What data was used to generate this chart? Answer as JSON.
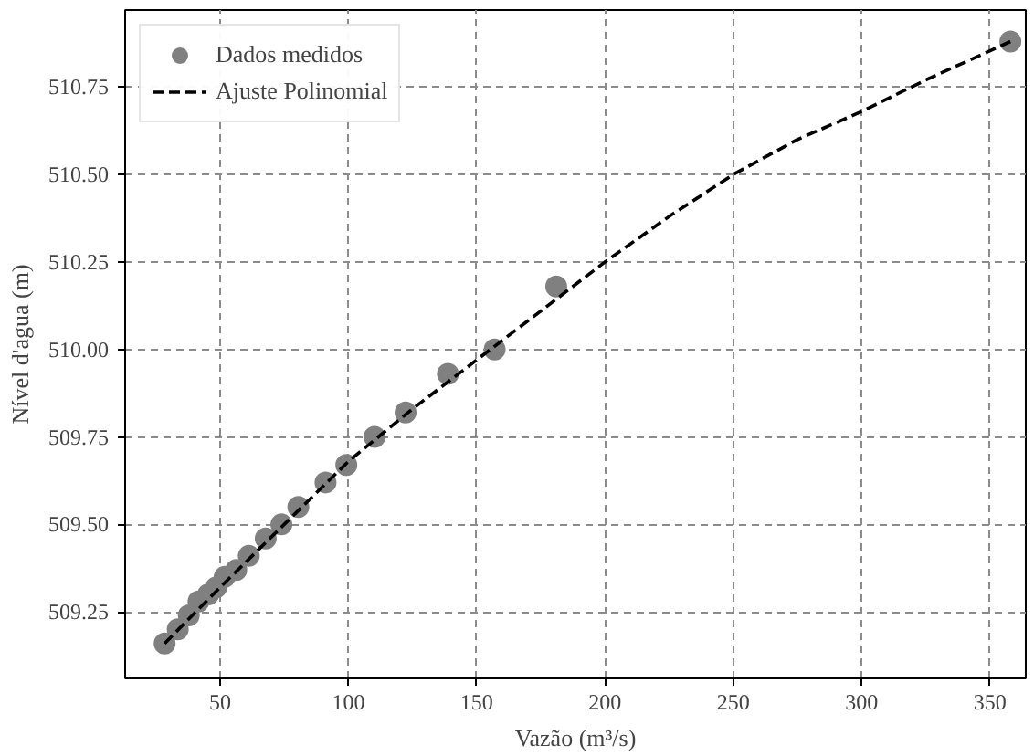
{
  "chart_data": {
    "type": "scatter",
    "xlabel": "Vazão (m³/s)",
    "ylabel": "Nível d'agua (m)",
    "xlim": [
      13,
      364
    ],
    "ylim": [
      509.06,
      510.97
    ],
    "xticks": [
      50,
      100,
      150,
      200,
      250,
      300,
      350
    ],
    "yticks": [
      {
        "value": 509.25,
        "label": "509.25"
      },
      {
        "value": 509.5,
        "label": "509.50"
      },
      {
        "value": 509.75,
        "label": "509.75"
      },
      {
        "value": 510.0,
        "label": "510.00"
      },
      {
        "value": 510.25,
        "label": "510.25"
      },
      {
        "value": 510.5,
        "label": "510.50"
      },
      {
        "value": 510.75,
        "label": "510.75"
      }
    ],
    "grid": true,
    "legend": "top left",
    "series": [
      {
        "name": "Dados medidos",
        "marker": "circle",
        "color": "#808080",
        "x": [
          28.4,
          33.5,
          37.8,
          41.6,
          45.4,
          48.5,
          51.8,
          56.3,
          61.2,
          67.8,
          73.9,
          80.5,
          91.1,
          99.2,
          110.2,
          122.3,
          138.8,
          157,
          181,
          358
        ],
        "values": [
          509.16,
          509.2,
          509.24,
          509.28,
          509.3,
          509.32,
          509.35,
          509.37,
          509.41,
          509.46,
          509.5,
          509.55,
          509.62,
          509.67,
          509.75,
          509.82,
          509.93,
          510.0,
          510.18,
          510.88
        ]
      },
      {
        "name": "Ajuste Polinomial",
        "type": "line",
        "line_style": "dashed",
        "color": "#000000",
        "x": [
          28.4,
          50,
          75,
          100,
          125,
          150,
          175,
          200,
          225,
          250,
          275,
          300,
          325,
          358
        ],
        "values": [
          509.16,
          509.32,
          509.5,
          509.68,
          509.83,
          509.97,
          510.11,
          510.25,
          510.38,
          510.5,
          510.6,
          510.68,
          510.77,
          510.88
        ]
      }
    ]
  }
}
